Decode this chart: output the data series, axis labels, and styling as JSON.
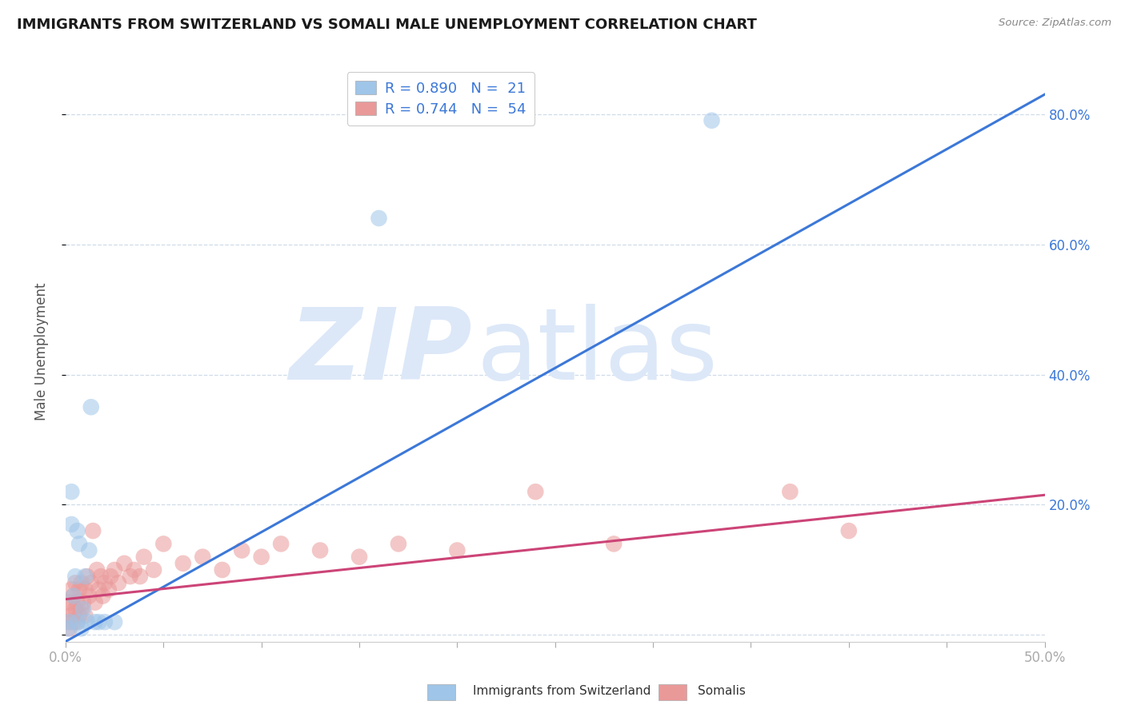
{
  "title": "IMMIGRANTS FROM SWITZERLAND VS SOMALI MALE UNEMPLOYMENT CORRELATION CHART",
  "source": "Source: ZipAtlas.com",
  "ylabel": "Male Unemployment",
  "xlim": [
    0.0,
    0.5
  ],
  "ylim": [
    -0.01,
    0.88
  ],
  "yticks": [
    0.0,
    0.2,
    0.4,
    0.6,
    0.8
  ],
  "xticks": [
    0.0,
    0.05,
    0.1,
    0.15,
    0.2,
    0.25,
    0.3,
    0.35,
    0.4,
    0.45,
    0.5
  ],
  "legend_blue_r": "R = 0.890",
  "legend_blue_n": "N =  21",
  "legend_pink_r": "R = 0.744",
  "legend_pink_n": "N =  54",
  "legend_label_blue": "Immigrants from Switzerland",
  "legend_label_pink": "Somalis",
  "blue_color": "#9fc5e8",
  "pink_color": "#ea9999",
  "blue_line_color": "#3c78d8",
  "pink_line_color": "#cc4477",
  "tick_label_color": "#3c78d8",
  "watermark_zip": "ZIP",
  "watermark_atlas": "atlas",
  "watermark_color": "#dce8f8",
  "blue_scatter_x": [
    0.001,
    0.002,
    0.003,
    0.003,
    0.004,
    0.005,
    0.006,
    0.006,
    0.007,
    0.008,
    0.009,
    0.01,
    0.011,
    0.012,
    0.013,
    0.015,
    0.017,
    0.02,
    0.025,
    0.16,
    0.33
  ],
  "blue_scatter_y": [
    0.01,
    0.02,
    0.22,
    0.17,
    0.06,
    0.09,
    0.16,
    0.02,
    0.14,
    0.01,
    0.04,
    0.09,
    0.02,
    0.13,
    0.35,
    0.02,
    0.02,
    0.02,
    0.02,
    0.64,
    0.79
  ],
  "pink_scatter_x": [
    0.001,
    0.001,
    0.002,
    0.002,
    0.003,
    0.003,
    0.004,
    0.004,
    0.005,
    0.005,
    0.006,
    0.006,
    0.007,
    0.007,
    0.008,
    0.008,
    0.009,
    0.01,
    0.01,
    0.011,
    0.012,
    0.013,
    0.014,
    0.015,
    0.016,
    0.017,
    0.018,
    0.019,
    0.02,
    0.022,
    0.023,
    0.025,
    0.027,
    0.03,
    0.033,
    0.035,
    0.038,
    0.04,
    0.045,
    0.05,
    0.06,
    0.07,
    0.08,
    0.09,
    0.1,
    0.11,
    0.13,
    0.15,
    0.17,
    0.2,
    0.24,
    0.28,
    0.37,
    0.4
  ],
  "pink_scatter_y": [
    0.02,
    0.04,
    0.01,
    0.05,
    0.03,
    0.07,
    0.02,
    0.06,
    0.04,
    0.08,
    0.02,
    0.05,
    0.03,
    0.07,
    0.04,
    0.08,
    0.05,
    0.03,
    0.07,
    0.09,
    0.06,
    0.08,
    0.16,
    0.05,
    0.1,
    0.07,
    0.09,
    0.06,
    0.08,
    0.07,
    0.09,
    0.1,
    0.08,
    0.11,
    0.09,
    0.1,
    0.09,
    0.12,
    0.1,
    0.14,
    0.11,
    0.12,
    0.1,
    0.13,
    0.12,
    0.14,
    0.13,
    0.12,
    0.14,
    0.13,
    0.22,
    0.14,
    0.22,
    0.16
  ],
  "blue_line_x0": 0.0,
  "blue_line_y0": -0.01,
  "blue_line_x1": 0.5,
  "blue_line_y1": 0.83,
  "pink_line_x0": 0.0,
  "pink_line_y0": 0.055,
  "pink_line_x1": 0.5,
  "pink_line_y1": 0.215
}
